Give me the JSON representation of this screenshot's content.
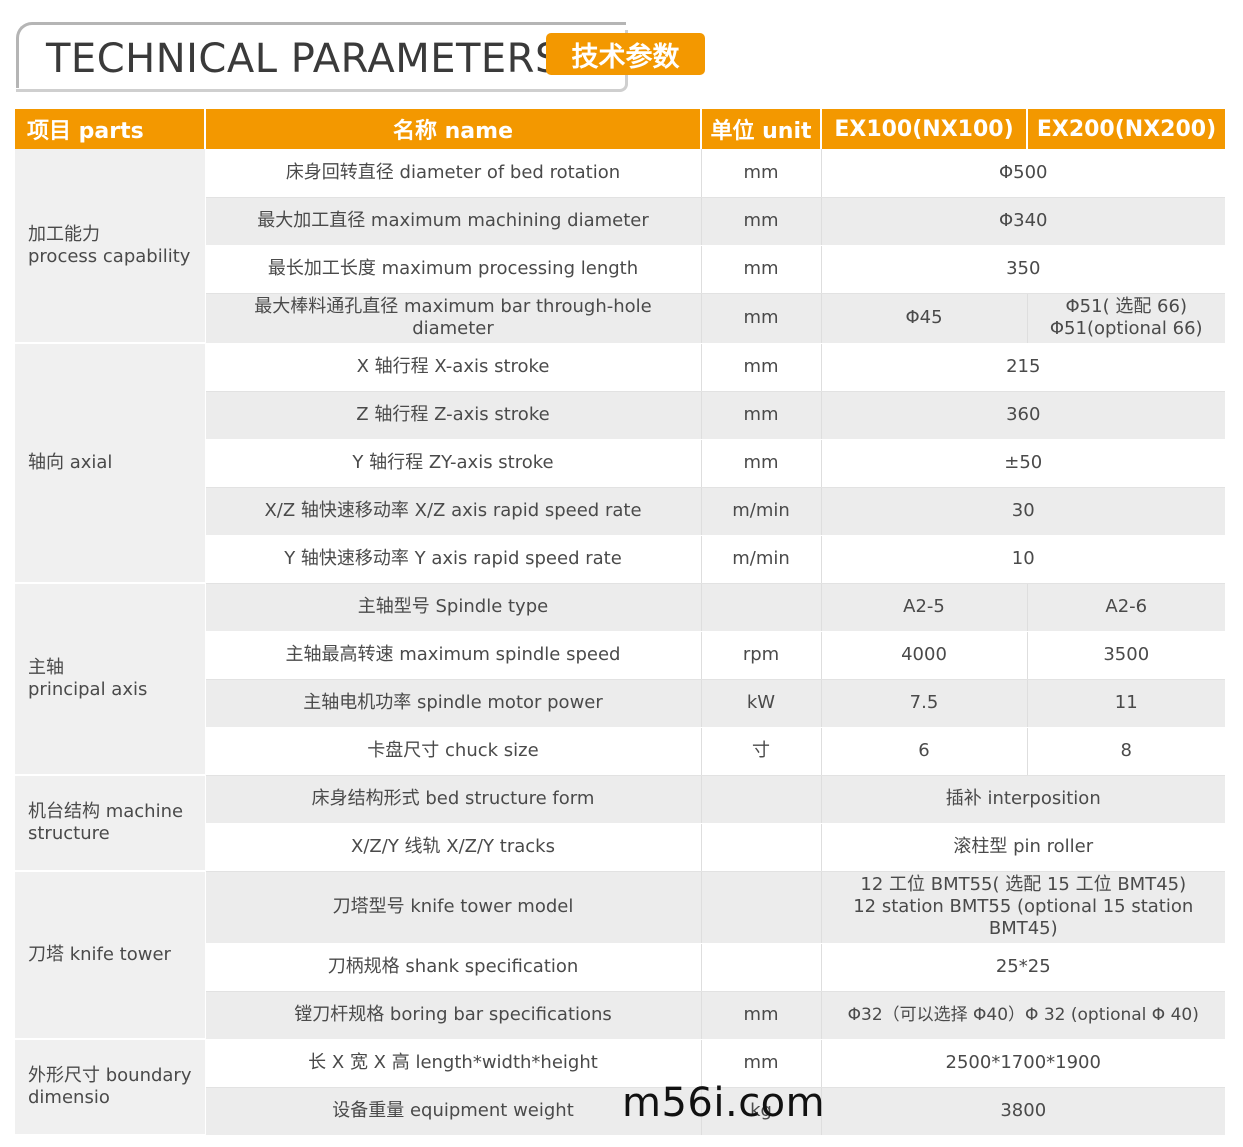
{
  "header": {
    "title": "TECHNICAL PARAMETERS",
    "badge": "技术参数"
  },
  "columns": [
    "项目 parts",
    "名称 name",
    "单位 unit",
    "EX100(NX100)",
    "EX200(NX200)"
  ],
  "sections": {
    "process": {
      "label": "加工能力\nprocess capability",
      "rows": [
        {
          "name": "床身回转直径 diameter of bed rotation",
          "unit": "mm",
          "value": "Φ500"
        },
        {
          "name": "最大加工直径 maximum machining diameter",
          "unit": "mm",
          "value": "Φ340"
        },
        {
          "name": "最长加工长度 maximum processing length",
          "unit": "mm",
          "value": "350"
        },
        {
          "name": "最大棒料通孔直径 maximum bar through-hole diameter",
          "unit": "mm",
          "ex100": "Φ45",
          "ex200": "Φ51( 选配 66)\nΦ51(optional 66)"
        }
      ]
    },
    "axial": {
      "label": "轴向 axial",
      "rows": [
        {
          "name": "X 轴行程 X-axis stroke",
          "unit": "mm",
          "value": "215"
        },
        {
          "name": "Z 轴行程 Z-axis stroke",
          "unit": "mm",
          "value": "360"
        },
        {
          "name": "Y 轴行程 ZY-axis stroke",
          "unit": "mm",
          "value": "±50"
        },
        {
          "name": "X/Z 轴快速移动率 X/Z axis rapid speed rate",
          "unit": "m/min",
          "value": "30"
        },
        {
          "name": "Y 轴快速移动率 Y axis rapid speed rate",
          "unit": "m/min",
          "value": "10"
        }
      ]
    },
    "spindle": {
      "label": "主轴\nprincipal axis",
      "rows": [
        {
          "name": "主轴型号 Spindle type",
          "unit": "",
          "ex100": "A2-5",
          "ex200": "A2-6"
        },
        {
          "name": "主轴最高转速 maximum spindle speed",
          "unit": "rpm",
          "ex100": "4000",
          "ex200": "3500"
        },
        {
          "name": "主轴电机功率 spindle motor power",
          "unit": "kW",
          "ex100": "7.5",
          "ex200": "11"
        },
        {
          "name": "卡盘尺寸 chuck size",
          "unit": "寸",
          "ex100": "6",
          "ex200": "8"
        }
      ]
    },
    "structure": {
      "label": "机台结构 machine\nstructure",
      "rows": [
        {
          "name": "床身结构形式 bed structure form",
          "unit": "",
          "value": "插补 interposition"
        },
        {
          "name": "X/Z/Y 线轨 X/Z/Y tracks",
          "unit": "",
          "value": "滚柱型 pin roller"
        }
      ]
    },
    "tower": {
      "label": "刀塔 knife tower",
      "rows": [
        {
          "name": "刀塔型号 knife tower model",
          "unit": "",
          "value": "12 工位 BMT55( 选配 15 工位 BMT45)\n12 station BMT55 (optional 15 station BMT45)"
        },
        {
          "name": "刀柄规格 shank specification",
          "unit": "",
          "value": "25*25"
        },
        {
          "name": "镗刀杆规格 boring bar specifications",
          "unit": "mm",
          "value": "Φ32（可以选择 Φ40）Φ 32 (optional Φ 40)"
        }
      ]
    },
    "dimension": {
      "label": "外形尺寸 boundary\ndimensio",
      "rows": [
        {
          "name": "长 X 宽 X 高 length*width*height",
          "unit": "mm",
          "value": "2500*1700*1900"
        },
        {
          "name": "设备重量 equipment weight",
          "unit": "kg",
          "value": "3800"
        }
      ]
    }
  },
  "watermark": "m56i.com"
}
